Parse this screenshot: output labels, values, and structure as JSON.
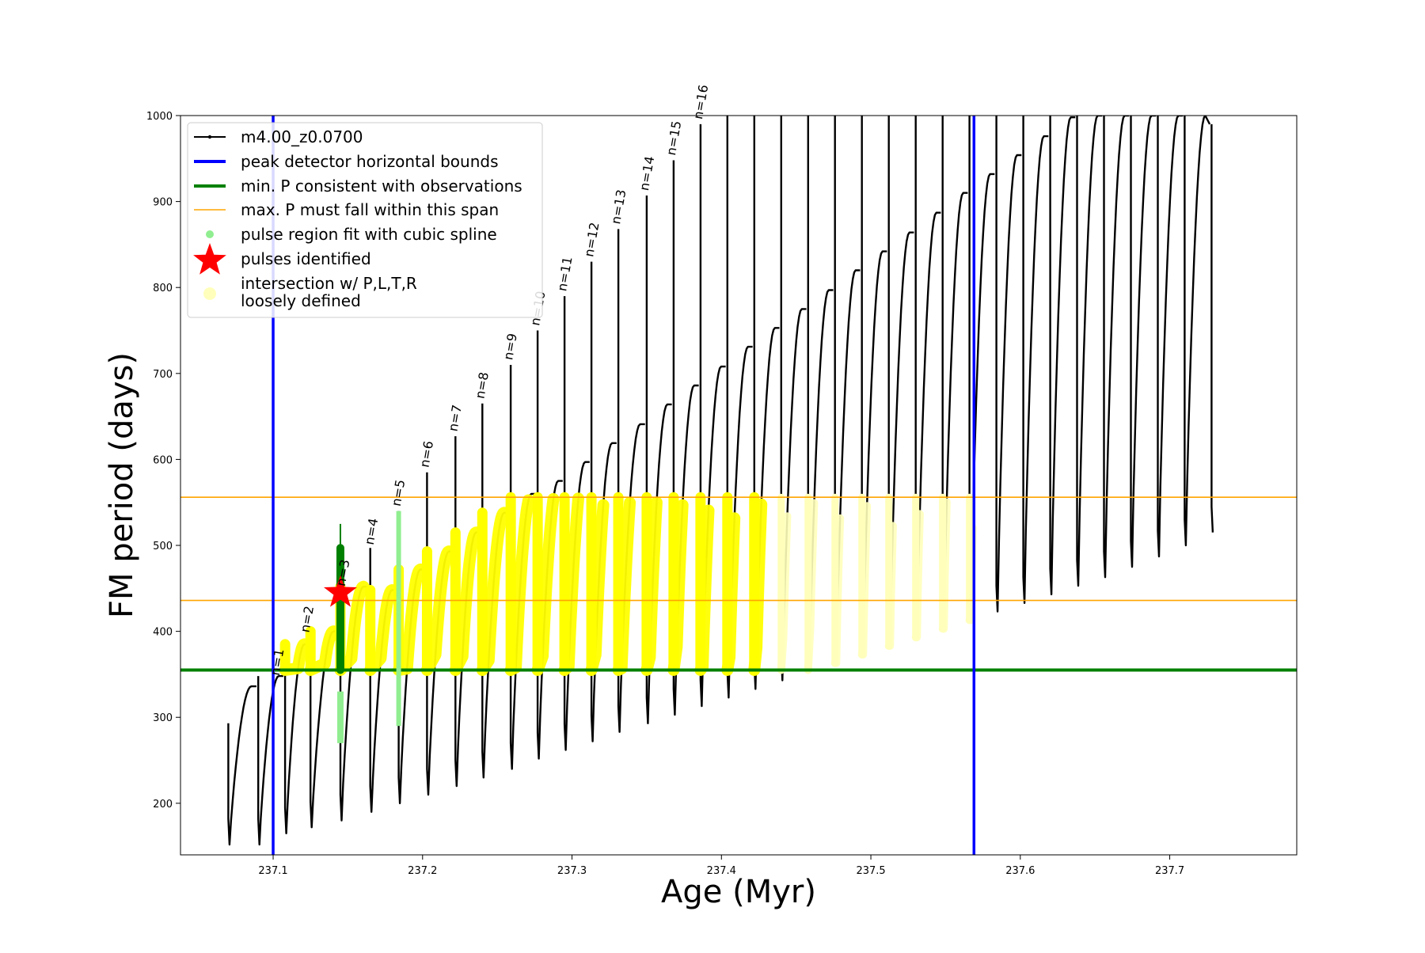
{
  "chart_data": {
    "type": "line",
    "xlabel": "Age (Myr)",
    "ylabel": "FM period (days)",
    "xlim": [
      237.038,
      237.785
    ],
    "ylim": [
      140,
      1000
    ],
    "x_ticks": [
      237.1,
      237.2,
      237.3,
      237.4,
      237.5,
      237.6,
      237.7
    ],
    "x_tick_labels": [
      "237.1",
      "237.2",
      "237.3",
      "237.4",
      "237.5",
      "237.6",
      "237.7"
    ],
    "y_ticks": [
      200,
      300,
      400,
      500,
      600,
      700,
      800,
      900,
      1000
    ],
    "y_tick_labels": [
      "200",
      "300",
      "400",
      "500",
      "600",
      "700",
      "800",
      "900",
      "1000"
    ],
    "grid": false,
    "legend_position": "top-left",
    "colors": {
      "track": "#000000",
      "bounds": "#0000ff",
      "min_period": "#008000",
      "span": "#ffa500",
      "spline": "#90ee90",
      "pulse": "#ff0000",
      "intersection": "#ffff00",
      "loose": "#ffffbb"
    },
    "legend": [
      {
        "label": "m4.00_z0.0700",
        "kind": "line-marker",
        "color": "#000000"
      },
      {
        "label": "peak detector horizontal bounds",
        "kind": "thick-line",
        "color": "#0000ff"
      },
      {
        "label": "min. P consistent with observations",
        "kind": "thick-line",
        "color": "#008000"
      },
      {
        "label": "max. P must fall within this span",
        "kind": "thin-line",
        "color": "#ffa500"
      },
      {
        "label": "pulse region fit with cubic spline",
        "kind": "dot",
        "color": "#90ee90"
      },
      {
        "label": "pulses identified",
        "kind": "star",
        "color": "#ff0000"
      },
      {
        "label": "intersection w/ P,L,T,R",
        "label2": "loosely defined",
        "kind": "big-dot",
        "color": "#ffffbb"
      }
    ],
    "series": [
      {
        "name": "m4.00_z0.0700",
        "pulses": [
          {
            "x": 237.07,
            "min": 152,
            "peak": 336,
            "top": 293
          },
          {
            "x": 237.09,
            "min": 152,
            "peak": 348,
            "top": 348
          },
          {
            "x": 237.108,
            "min": 165,
            "peak": 385,
            "top": 385
          },
          {
            "x": 237.125,
            "min": 172,
            "peak": 400,
            "top": 400
          },
          {
            "x": 237.145,
            "min": 180,
            "peak": 452,
            "top": 492
          },
          {
            "x": 237.165,
            "min": 190,
            "peak": 448,
            "top": 497
          },
          {
            "x": 237.184,
            "min": 200,
            "peak": 472,
            "top": 540
          },
          {
            "x": 237.203,
            "min": 210,
            "peak": 493,
            "top": 585
          },
          {
            "x": 237.222,
            "min": 220,
            "peak": 515,
            "top": 627
          },
          {
            "x": 237.24,
            "min": 230,
            "peak": 538,
            "top": 665
          },
          {
            "x": 237.259,
            "min": 240,
            "peak": 560,
            "top": 710
          },
          {
            "x": 237.277,
            "min": 252,
            "peak": 575,
            "top": 750
          },
          {
            "x": 237.295,
            "min": 262,
            "peak": 597,
            "top": 790
          },
          {
            "x": 237.313,
            "min": 272,
            "peak": 619,
            "top": 830
          },
          {
            "x": 237.331,
            "min": 283,
            "peak": 641,
            "top": 868
          },
          {
            "x": 237.35,
            "min": 293,
            "peak": 664,
            "top": 907
          },
          {
            "x": 237.368,
            "min": 303,
            "peak": 686,
            "top": 948
          },
          {
            "x": 237.386,
            "min": 313,
            "peak": 708,
            "top": 990
          },
          {
            "x": 237.404,
            "min": 323,
            "peak": 731,
            "top": 1000
          },
          {
            "x": 237.422,
            "min": 333,
            "peak": 753,
            "top": 1000
          },
          {
            "x": 237.44,
            "min": 343,
            "peak": 775,
            "top": 1000
          },
          {
            "x": 237.458,
            "min": 353,
            "peak": 797,
            "top": 1000
          },
          {
            "x": 237.476,
            "min": 363,
            "peak": 820,
            "top": 1000
          },
          {
            "x": 237.494,
            "min": 373,
            "peak": 842,
            "top": 1000
          },
          {
            "x": 237.512,
            "min": 383,
            "peak": 864,
            "top": 1000
          },
          {
            "x": 237.53,
            "min": 393,
            "peak": 887,
            "top": 1000
          },
          {
            "x": 237.548,
            "min": 403,
            "peak": 910,
            "top": 1000
          },
          {
            "x": 237.566,
            "min": 413,
            "peak": 932,
            "top": 1000
          },
          {
            "x": 237.584,
            "min": 423,
            "peak": 954,
            "top": 1000
          },
          {
            "x": 237.602,
            "min": 433,
            "peak": 976,
            "top": 1000
          },
          {
            "x": 237.62,
            "min": 443,
            "peak": 998,
            "top": 1000
          },
          {
            "x": 237.638,
            "min": 453,
            "peak": 1000,
            "top": 1000
          },
          {
            "x": 237.656,
            "min": 463,
            "peak": 1000,
            "top": 1000
          },
          {
            "x": 237.674,
            "min": 475,
            "peak": 1000,
            "top": 1000
          },
          {
            "x": 237.692,
            "min": 487,
            "peak": 1000,
            "top": 1000
          },
          {
            "x": 237.71,
            "min": 500,
            "peak": 1000,
            "top": 1000
          },
          {
            "x": 237.728,
            "min": 515,
            "peak": 990,
            "top": 990
          }
        ]
      },
      {
        "name": "peak detector horizontal bounds",
        "x": [
          237.1,
          237.569
        ]
      },
      {
        "name": "min. P consistent with observations",
        "y": 355
      },
      {
        "name": "max. P must fall within this span",
        "y": [
          436,
          556
        ]
      }
    ],
    "pulses_identified": [
      {
        "x": 237.145,
        "y": 445
      }
    ],
    "annotations": [
      {
        "text": "n=1",
        "x": 237.104,
        "y": 348
      },
      {
        "text": "n=2",
        "x": 237.124,
        "y": 398
      },
      {
        "text": "n=3",
        "x": 237.148,
        "y": 452
      },
      {
        "text": "n=4",
        "x": 237.167,
        "y": 500
      },
      {
        "text": "n=5",
        "x": 237.185,
        "y": 545
      },
      {
        "text": "n=6",
        "x": 237.204,
        "y": 590
      },
      {
        "text": "n=7",
        "x": 237.223,
        "y": 632
      },
      {
        "text": "n=8",
        "x": 237.241,
        "y": 670
      },
      {
        "text": "n=9",
        "x": 237.26,
        "y": 715
      },
      {
        "text": "n=10",
        "x": 237.278,
        "y": 755
      },
      {
        "text": "n=11",
        "x": 237.296,
        "y": 795
      },
      {
        "text": "n=12",
        "x": 237.314,
        "y": 835
      },
      {
        "text": "n=13",
        "x": 237.332,
        "y": 873
      },
      {
        "text": "n=14",
        "x": 237.351,
        "y": 912
      },
      {
        "text": "n=15",
        "x": 237.369,
        "y": 953
      },
      {
        "text": "n=16",
        "x": 237.387,
        "y": 995
      }
    ]
  }
}
